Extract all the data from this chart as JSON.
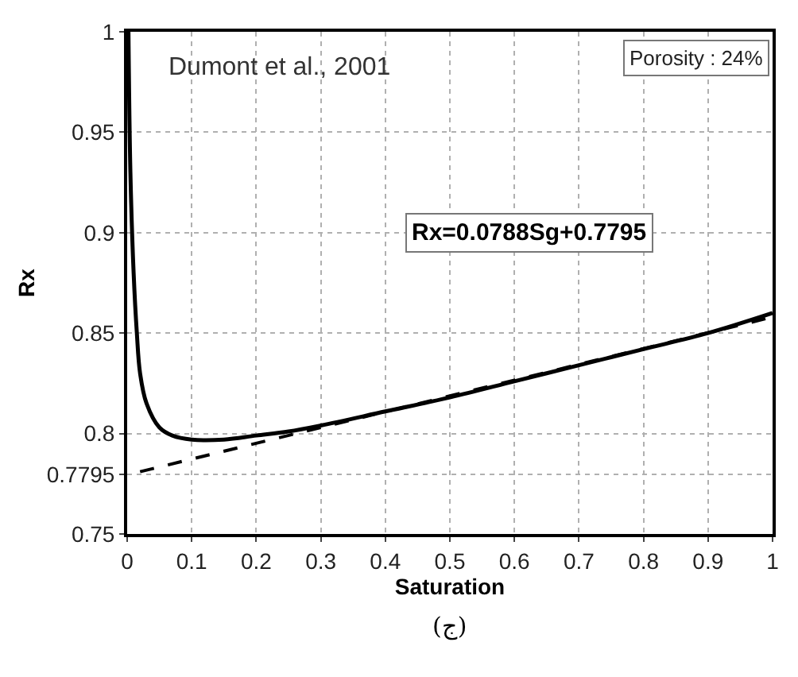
{
  "chart_data": {
    "type": "line",
    "xlabel": "Saturation",
    "ylabel": "Rx",
    "annotations": [
      "Dumont et al., 2001",
      "Porosity : 24%",
      "Rx=0.0788Sg+0.7795",
      "(ج)"
    ],
    "series": [
      {
        "color": "#000000",
        "line_style": "solid",
        "x": [
          0.002,
          0.005,
          0.01,
          0.015,
          0.02,
          0.03,
          0.05,
          0.07,
          0.1,
          0.15,
          0.2,
          0.25,
          0.3,
          0.4,
          0.5,
          0.6,
          0.7,
          0.8,
          0.9,
          1.0
        ],
        "values": [
          1.0,
          0.93,
          0.88,
          0.85,
          0.83,
          0.815,
          0.803,
          0.799,
          0.797,
          0.797,
          0.799,
          0.801,
          0.804,
          0.811,
          0.818,
          0.826,
          0.834,
          0.842,
          0.85,
          0.86
        ]
      },
      {
        "color": "#000000",
        "line_style": "dashed",
        "x": [
          0.02,
          1.0
        ],
        "values": [
          0.781,
          0.858
        ]
      }
    ],
    "xlim": [
      0,
      1
    ],
    "xticks": [
      0,
      0.1,
      0.2,
      0.3,
      0.4,
      0.5,
      0.6,
      0.7,
      0.8,
      0.9,
      1
    ],
    "ylim": [
      0.75,
      1
    ],
    "yticks": [
      0.75,
      0.7795,
      0.8,
      0.85,
      0.9,
      0.95,
      1
    ],
    "grid": true,
    "marker": "none"
  }
}
